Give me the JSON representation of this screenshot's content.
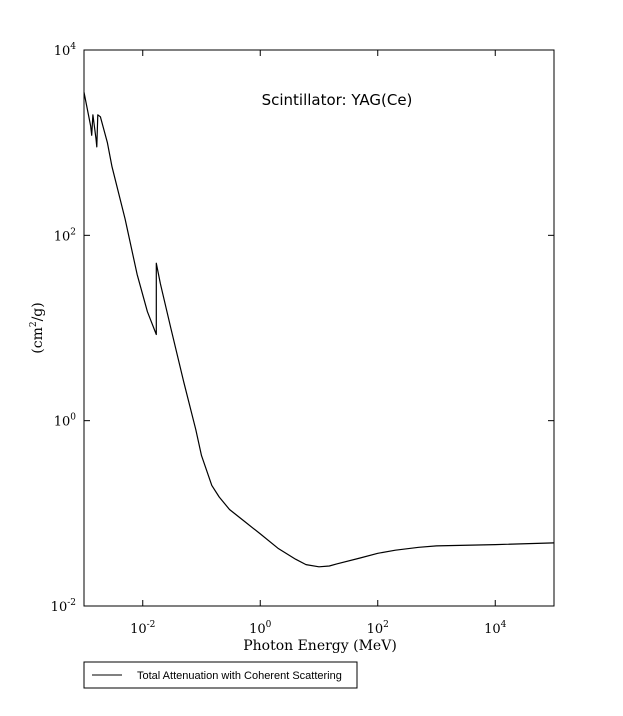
{
  "chart_data": {
    "type": "line",
    "title": "",
    "annotation": "Scintillator: YAG(Ce)",
    "xlabel": "Photon Energy (MeV)",
    "ylabel": {
      "base": "(cm",
      "exp": "2",
      "rest": "/g)"
    },
    "xscale": "log",
    "yscale": "log",
    "xlim": [
      0.001,
      100000
    ],
    "ylim": [
      0.01,
      10000
    ],
    "x_ticks": [
      {
        "base": "10",
        "exp": "-2",
        "value": 0.01
      },
      {
        "base": "10",
        "exp": "0",
        "value": 1
      },
      {
        "base": "10",
        "exp": "2",
        "value": 100
      },
      {
        "base": "10",
        "exp": "4",
        "value": 10000
      }
    ],
    "y_ticks": [
      {
        "base": "10",
        "exp": "-2",
        "value": 0.01
      },
      {
        "base": "10",
        "exp": "0",
        "value": 1
      },
      {
        "base": "10",
        "exp": "2",
        "value": 100
      },
      {
        "base": "10",
        "exp": "4",
        "value": 10000
      }
    ],
    "grid": false,
    "legend_position": "bottom-left",
    "series": [
      {
        "name": "Total Attenuation with Coherent Scattering",
        "color": "#000000",
        "points": [
          [
            0.001,
            3500
          ],
          [
            0.0013,
            1500
          ],
          [
            0.00135,
            1200
          ],
          [
            0.00142,
            2000
          ],
          [
            0.0016,
            1100
          ],
          [
            0.00165,
            900
          ],
          [
            0.00172,
            2000
          ],
          [
            0.0019,
            1900
          ],
          [
            0.0025,
            1000
          ],
          [
            0.003,
            550
          ],
          [
            0.005,
            150
          ],
          [
            0.008,
            38
          ],
          [
            0.012,
            15
          ],
          [
            0.017,
            8.5
          ],
          [
            0.01704,
            50
          ],
          [
            0.02,
            30
          ],
          [
            0.03,
            10
          ],
          [
            0.05,
            2.6
          ],
          [
            0.08,
            0.8
          ],
          [
            0.1,
            0.42
          ],
          [
            0.15,
            0.2
          ],
          [
            0.2,
            0.15
          ],
          [
            0.3,
            0.11
          ],
          [
            0.5,
            0.085
          ],
          [
            1,
            0.06
          ],
          [
            2,
            0.042
          ],
          [
            4,
            0.032
          ],
          [
            6,
            0.028
          ],
          [
            10,
            0.0265
          ],
          [
            15,
            0.027
          ],
          [
            20,
            0.0285
          ],
          [
            50,
            0.033
          ],
          [
            100,
            0.037
          ],
          [
            200,
            0.04
          ],
          [
            500,
            0.043
          ],
          [
            1000,
            0.0445
          ],
          [
            10000,
            0.046
          ],
          [
            100000,
            0.048
          ]
        ]
      }
    ]
  }
}
